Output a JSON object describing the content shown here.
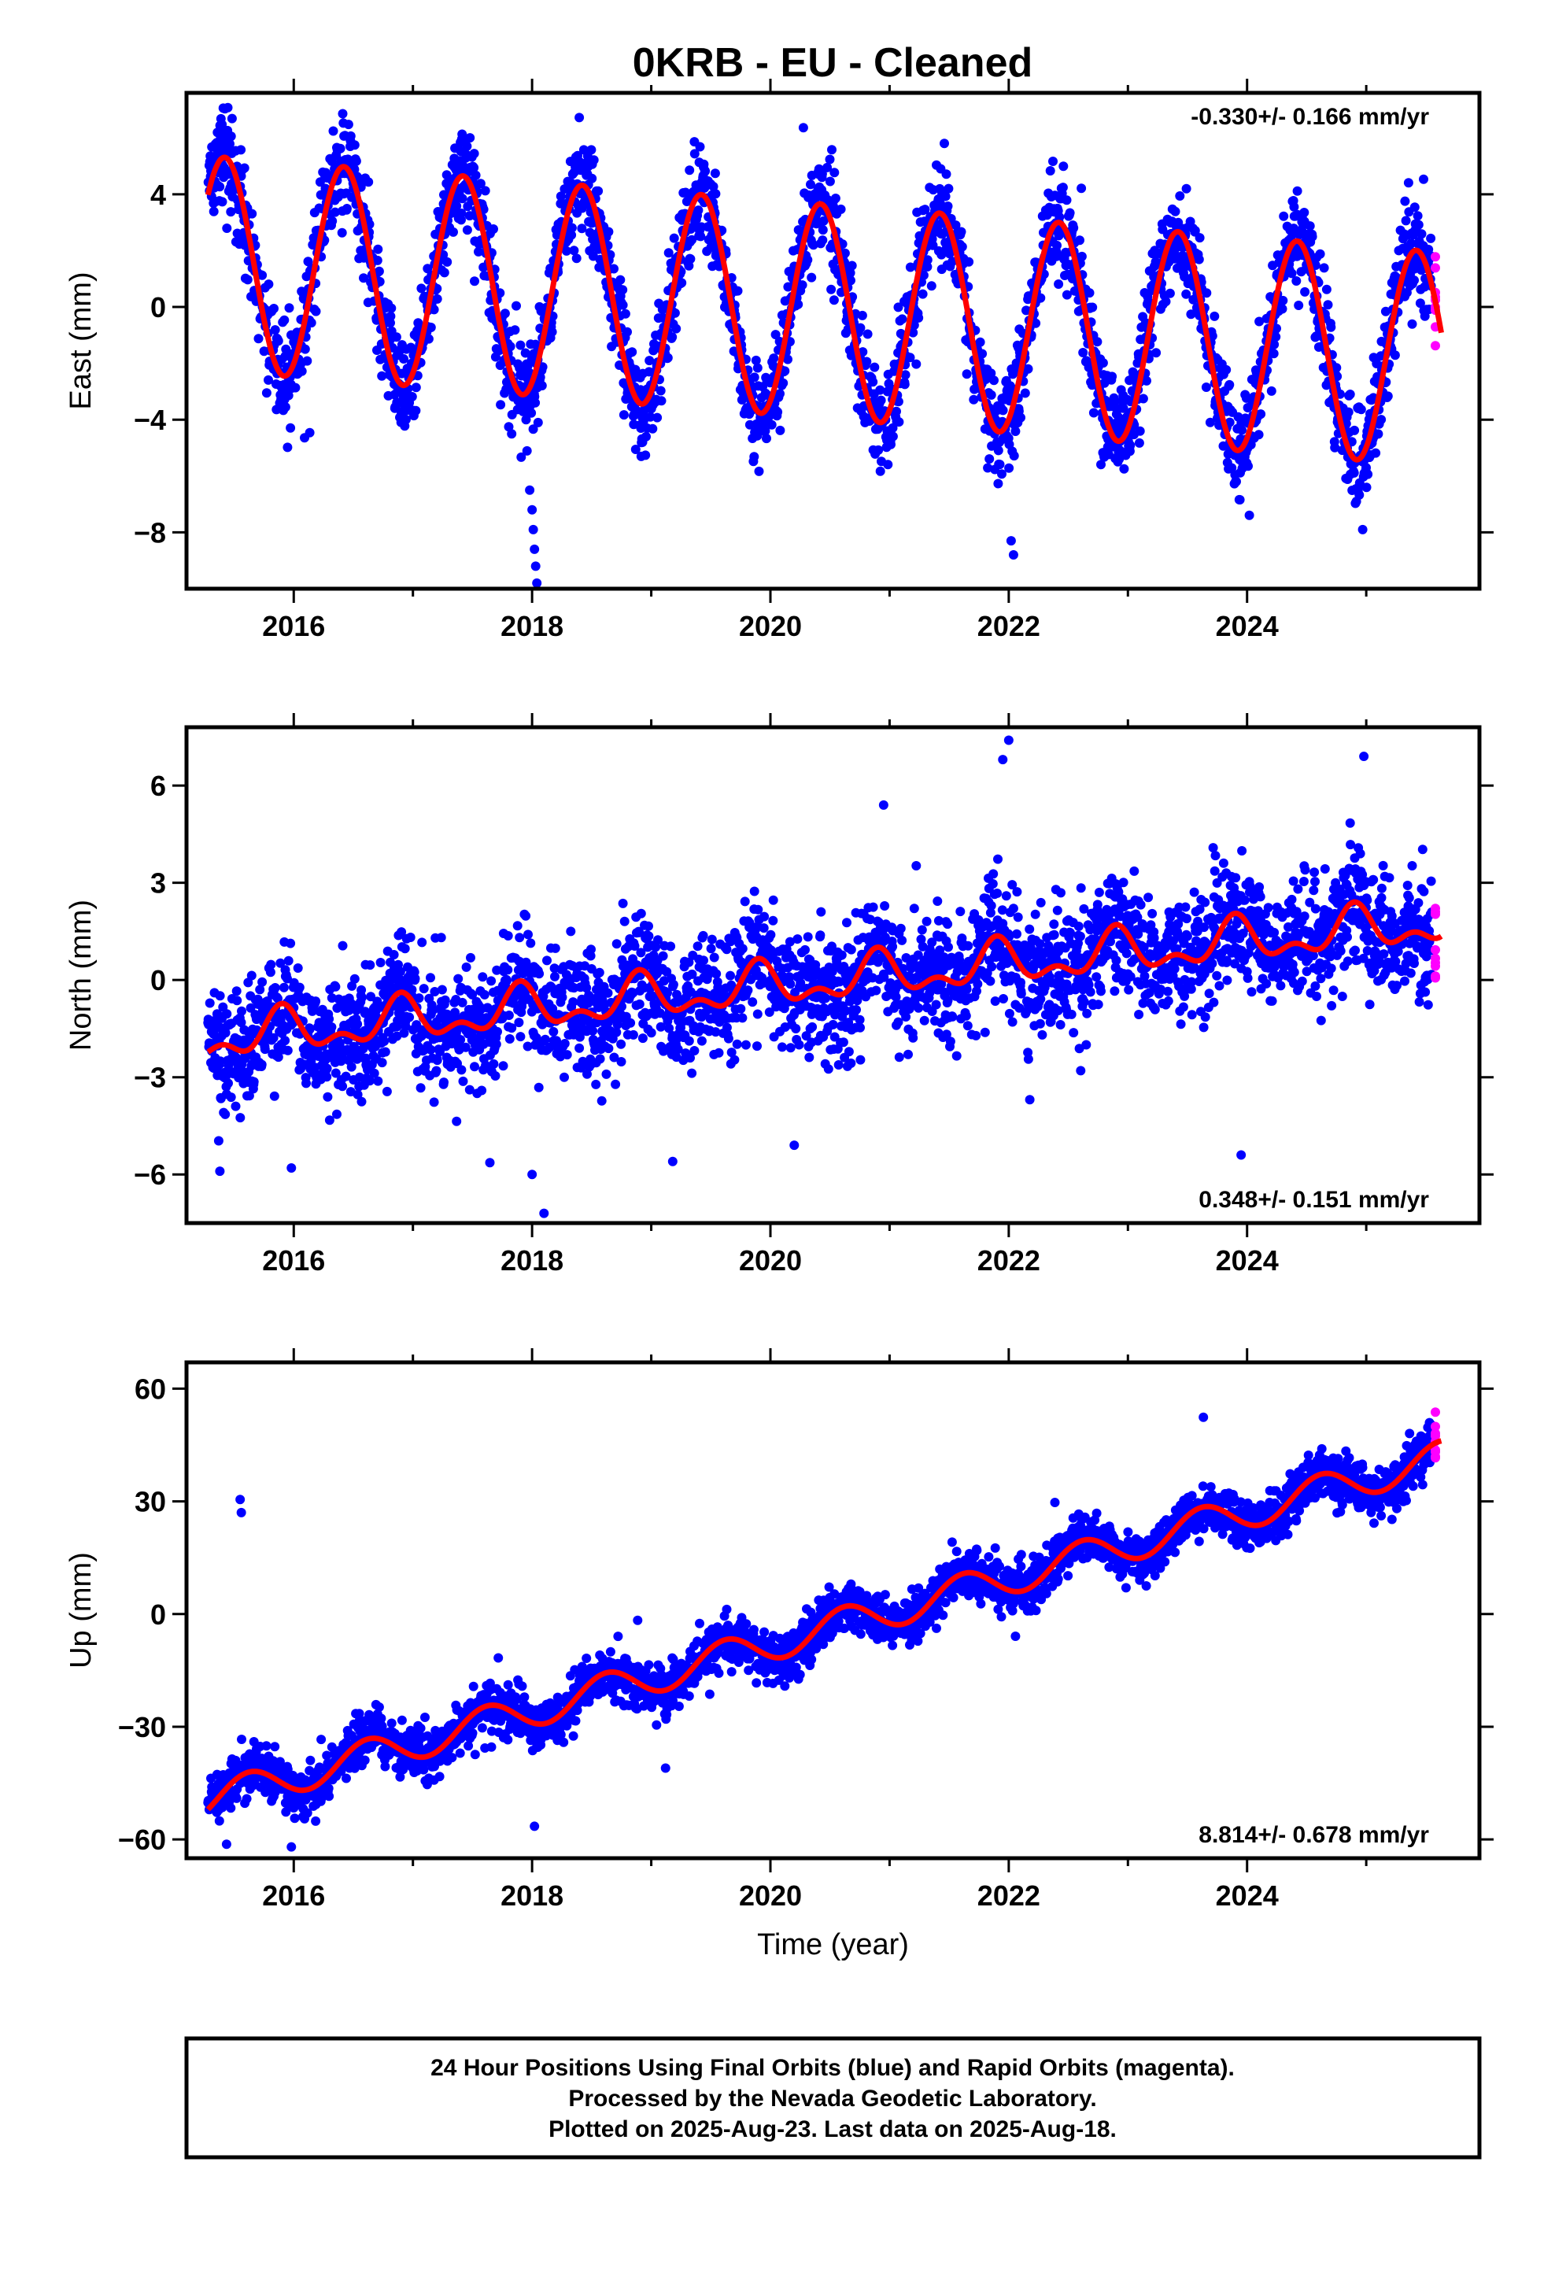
{
  "title": "0KRB  - EU - Cleaned",
  "footer": {
    "lines": [
      "24 Hour Positions Using Final Orbits (blue) and Rapid Orbits (magenta).",
      "Processed by the Nevada Geodetic Laboratory.",
      "Plotted on 2025-Aug-23. Last data on 2025-Aug-18."
    ]
  },
  "colors": {
    "final": "#0000ff",
    "rapid": "#ff00ff",
    "model": "#ff0000",
    "frame": "#000000"
  },
  "chart_data": [
    {
      "type": "scatter",
      "component": "East",
      "ylabel": "East (mm)",
      "xlabel": "",
      "rate_text": "-0.330+/- 0.166 mm/yr",
      "rate_position": "top-right",
      "xlim": [
        2015.1,
        2025.95
      ],
      "ylim": [
        -10.0,
        7.6
      ],
      "xticks": [
        2016,
        2018,
        2020,
        2022,
        2024
      ],
      "xtick_labels": [
        "2016",
        "2018",
        "2020",
        "2022",
        "2024"
      ],
      "yticks": [
        -8,
        -4,
        0,
        4
      ],
      "ytick_labels": [
        "−8",
        "−4",
        "0",
        "4"
      ],
      "model": {
        "trend_mm_per_yr": -0.33,
        "offset_mm": 0.0,
        "annual_amplitude_mm": 3.8,
        "annual_peak_year_fraction": 0.42,
        "semiannual_amplitude_mm": 0.0,
        "semiannual_peak_year_fraction": 0.0,
        "noise_mm": 0.9
      },
      "final_orbits": {
        "start": 2015.28,
        "end": 2025.55
      },
      "rapid_orbits": {
        "start": 2025.57,
        "end": 2025.63
      },
      "outliers": [
        {
          "x": 2017.98,
          "y": -6.5
        },
        {
          "x": 2018.0,
          "y": -7.2
        },
        {
          "x": 2018.01,
          "y": -7.9
        },
        {
          "x": 2018.02,
          "y": -8.6
        },
        {
          "x": 2018.03,
          "y": -9.2
        },
        {
          "x": 2018.04,
          "y": -9.8
        },
        {
          "x": 2022.02,
          "y": -8.3
        },
        {
          "x": 2022.04,
          "y": -8.8
        },
        {
          "x": 2024.97,
          "y": -7.9
        }
      ]
    },
    {
      "type": "scatter",
      "component": "North",
      "ylabel": "North (mm)",
      "xlabel": "",
      "rate_text": "0.348+/- 0.151 mm/yr",
      "rate_position": "bottom-right",
      "xlim": [
        2015.1,
        2025.95
      ],
      "ylim": [
        -7.5,
        7.8
      ],
      "xticks": [
        2016,
        2018,
        2020,
        2022,
        2024
      ],
      "xtick_labels": [
        "2016",
        "2018",
        "2020",
        "2022",
        "2024"
      ],
      "yticks": [
        -6,
        -3,
        0,
        3,
        6
      ],
      "ytick_labels": [
        "−6",
        "−3",
        "0",
        "3",
        "6"
      ],
      "model": {
        "trend_mm_per_yr": 0.348,
        "offset_mm": -0.2,
        "annual_amplitude_mm": 0.55,
        "annual_peak_year_fraction": 0.9,
        "semiannual_amplitude_mm": 0.35,
        "semiannual_peak_year_fraction": 0.4,
        "noise_mm": 0.9
      },
      "final_orbits": {
        "start": 2015.28,
        "end": 2025.55
      },
      "rapid_orbits": {
        "start": 2025.57,
        "end": 2025.63
      },
      "outliers": [
        {
          "x": 2015.38,
          "y": -5.9
        },
        {
          "x": 2015.98,
          "y": -5.8
        },
        {
          "x": 2018.0,
          "y": -6.0
        },
        {
          "x": 2018.1,
          "y": -7.2
        },
        {
          "x": 2019.18,
          "y": -5.6
        },
        {
          "x": 2020.2,
          "y": -5.1
        },
        {
          "x": 2021.95,
          "y": 6.8
        },
        {
          "x": 2022.0,
          "y": 7.4
        },
        {
          "x": 2023.95,
          "y": -5.4
        },
        {
          "x": 2024.98,
          "y": 6.9
        },
        {
          "x": 2020.95,
          "y": 5.4
        }
      ]
    },
    {
      "type": "scatter",
      "component": "Up",
      "ylabel": "Up (mm)",
      "xlabel": "Time (year)",
      "rate_text": "8.814+/- 0.678 mm/yr",
      "rate_position": "bottom-right",
      "xlim": [
        2015.1,
        2025.95
      ],
      "ylim": [
        -65,
        67
      ],
      "xticks": [
        2016,
        2018,
        2020,
        2022,
        2024
      ],
      "xtick_labels": [
        "2016",
        "2018",
        "2020",
        "2022",
        "2024"
      ],
      "yticks": [
        -60,
        -30,
        0,
        30,
        60
      ],
      "ytick_labels": [
        "−60",
        "−30",
        "0",
        "30",
        "60"
      ],
      "model": {
        "trend_mm_per_yr": 8.814,
        "offset_mm": -8.0,
        "annual_amplitude_mm": 4.5,
        "annual_peak_year_fraction": 0.62,
        "semiannual_amplitude_mm": 0.0,
        "semiannual_peak_year_fraction": 0.0,
        "noise_mm": 3.2
      },
      "final_orbits": {
        "start": 2015.28,
        "end": 2025.55
      },
      "rapid_orbits": {
        "start": 2025.57,
        "end": 2025.63
      },
      "outliers": [
        {
          "x": 2015.55,
          "y": 30.5
        },
        {
          "x": 2015.56,
          "y": 27.0
        },
        {
          "x": 2015.98,
          "y": -62.0
        },
        {
          "x": 2018.02,
          "y": -56.5
        },
        {
          "x": 2019.12,
          "y": -41.0
        }
      ]
    }
  ]
}
